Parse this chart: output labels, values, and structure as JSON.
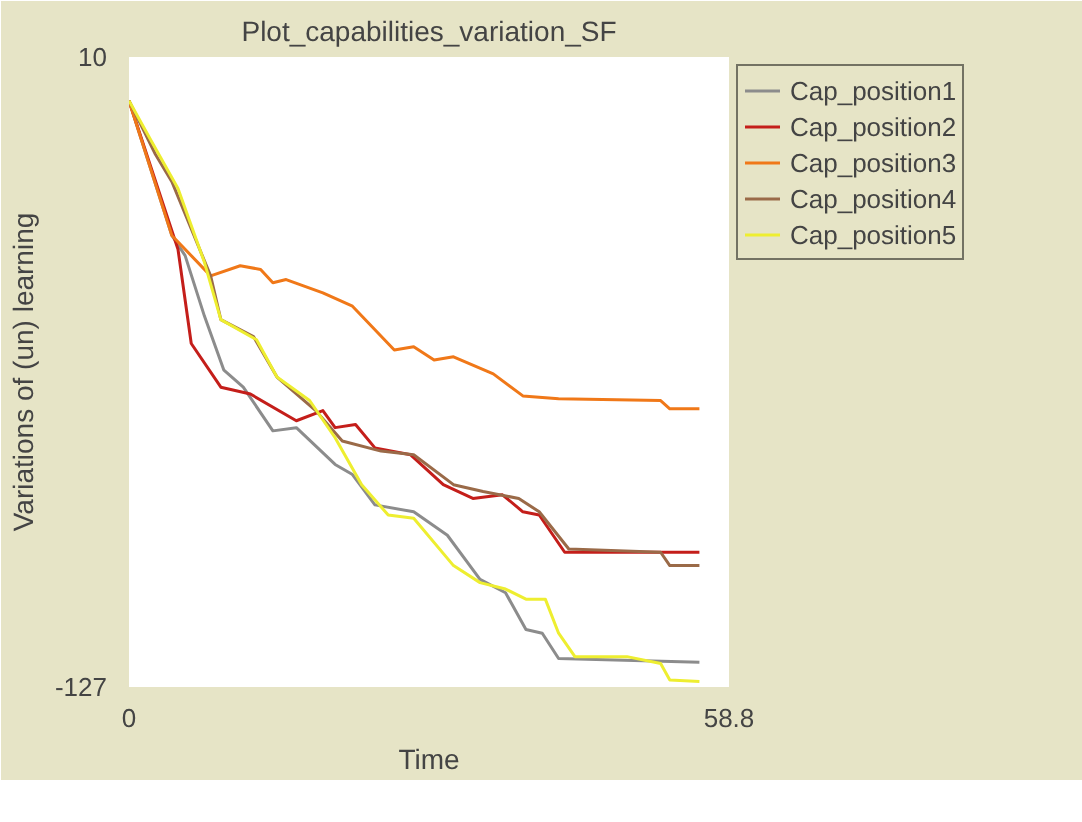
{
  "chart_data": {
    "type": "line",
    "title": "Plot_capabilities_variation_SF",
    "xlabel": "Time",
    "ylabel": "Variations of (un) learning",
    "xlim": [
      0,
      58.8
    ],
    "ylim": [
      -127,
      10
    ],
    "xticks": [
      0,
      58.8
    ],
    "yticks": [
      -127,
      10
    ],
    "legend": "right",
    "marker": "none",
    "line_style": "solid",
    "series": [
      {
        "name": "Cap_position1",
        "color": "#8c8c8c",
        "x": [
          0,
          4.2,
          5.5,
          7.4,
          9.3,
          11.2,
          14.1,
          16.4,
          20.2,
          21.9,
          24.1,
          27.9,
          31.2,
          34.4,
          36.9,
          38.9,
          40.5,
          42.1,
          55.9
        ],
        "values": [
          0.5,
          -28.8,
          -33.2,
          -46.4,
          -58.1,
          -61.8,
          -71.3,
          -70.6,
          -78.6,
          -80.8,
          -87.4,
          -88.9,
          -94.0,
          -103.6,
          -106.5,
          -114.5,
          -115.3,
          -120.8,
          -121.6
        ]
      },
      {
        "name": "Cap_position2",
        "color": "#c41e1a",
        "x": [
          0,
          4.8,
          6.1,
          9.0,
          11.9,
          16.4,
          19.0,
          20.2,
          22.2,
          24.1,
          27.6,
          30.8,
          33.7,
          36.6,
          38.6,
          40.2,
          42.7,
          55.9
        ],
        "values": [
          0.5,
          -31.8,
          -52.3,
          -61.8,
          -63.3,
          -69.1,
          -66.9,
          -70.6,
          -69.9,
          -75.0,
          -76.5,
          -83.0,
          -86.0,
          -85.2,
          -88.9,
          -89.6,
          -97.7,
          -97.7
        ]
      },
      {
        "name": "Cap_position3",
        "color": "#f07818",
        "x": [
          0,
          4.2,
          8.0,
          10.9,
          12.9,
          14.1,
          15.4,
          19.0,
          21.9,
          26.0,
          27.9,
          29.9,
          31.8,
          35.7,
          38.6,
          42.1,
          52.1,
          53.0,
          55.9
        ],
        "values": [
          0.5,
          -28.8,
          -37.6,
          -35.4,
          -36.2,
          -39.1,
          -38.4,
          -41.3,
          -44.2,
          -53.7,
          -53.0,
          -55.9,
          -55.2,
          -58.9,
          -63.7,
          -64.3,
          -64.7,
          -66.5,
          -66.5
        ]
      },
      {
        "name": "Cap_position4",
        "color": "#9a6a48",
        "x": [
          0,
          2.6,
          4.2,
          8.0,
          9.0,
          12.2,
          14.5,
          18.3,
          20.9,
          24.7,
          27.9,
          31.8,
          34.7,
          38.2,
          40.2,
          43.1,
          52.1,
          53.0,
          55.9
        ],
        "values": [
          0.5,
          -11.2,
          -17.1,
          -37.6,
          -47.1,
          -50.8,
          -59.6,
          -66.9,
          -73.5,
          -75.7,
          -76.5,
          -83.0,
          -84.5,
          -86.0,
          -88.9,
          -97.0,
          -97.7,
          -100.6,
          -100.6
        ]
      },
      {
        "name": "Cap_position5",
        "color": "#eeee30",
        "x": [
          0,
          2.2,
          4.8,
          7.4,
          9.0,
          12.5,
          14.5,
          17.7,
          20.2,
          22.8,
          25.4,
          27.9,
          31.8,
          34.4,
          36.9,
          38.9,
          40.8,
          42.1,
          43.7,
          48.8,
          52.1,
          53.0,
          55.9
        ],
        "values": [
          0.5,
          -8.3,
          -18.6,
          -34.7,
          -47.1,
          -51.5,
          -59.6,
          -64.7,
          -72.8,
          -83.0,
          -89.6,
          -90.3,
          -100.6,
          -104.3,
          -105.7,
          -107.9,
          -107.9,
          -115.3,
          -120.4,
          -120.4,
          -121.9,
          -125.5,
          -125.8
        ]
      }
    ]
  }
}
